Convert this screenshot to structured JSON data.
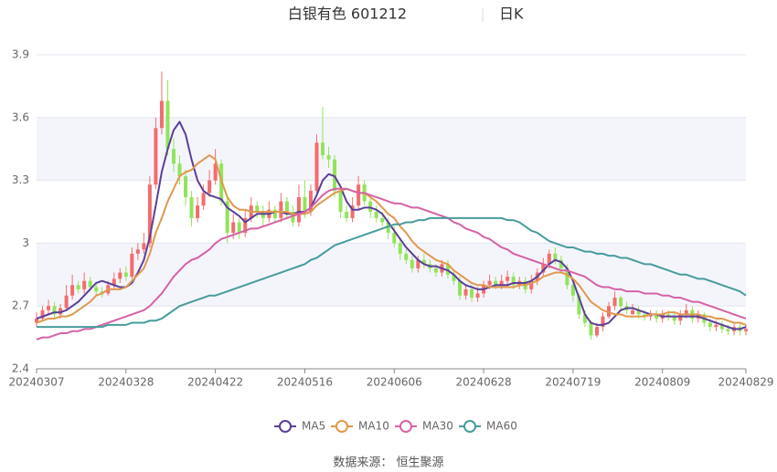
{
  "chart_data": {
    "type": "candlestick",
    "title": "白银有色 601212",
    "period": "日K",
    "source": "数据来源：  恒生聚源",
    "categories": [
      "20240307",
      null,
      null,
      null,
      null,
      null,
      null,
      null,
      null,
      null,
      null,
      null,
      null,
      null,
      null,
      "20240328",
      null,
      null,
      null,
      null,
      null,
      null,
      null,
      null,
      null,
      null,
      null,
      null,
      null,
      null,
      "20240422",
      null,
      null,
      null,
      null,
      null,
      null,
      null,
      null,
      null,
      null,
      null,
      null,
      null,
      null,
      "20240516",
      null,
      null,
      null,
      null,
      null,
      null,
      null,
      null,
      null,
      null,
      null,
      null,
      null,
      null,
      "20240606",
      null,
      null,
      null,
      null,
      null,
      null,
      null,
      null,
      null,
      null,
      null,
      null,
      null,
      null,
      "20240628",
      null,
      null,
      null,
      null,
      null,
      null,
      null,
      null,
      null,
      null,
      null,
      null,
      null,
      null,
      "20240719",
      null,
      null,
      null,
      null,
      null,
      null,
      null,
      null,
      null,
      null,
      null,
      null,
      null,
      null,
      "20240809",
      null,
      null,
      null,
      null,
      null,
      null,
      null,
      null,
      null,
      null,
      null,
      null,
      null,
      "20240829"
    ],
    "candles": {
      "open": [
        2.62,
        2.64,
        2.68,
        2.7,
        2.66,
        2.69,
        2.75,
        2.8,
        2.78,
        2.82,
        2.79,
        2.77,
        2.76,
        2.8,
        2.83,
        2.86,
        2.84,
        2.95,
        2.97,
        3.0,
        3.28,
        3.55,
        3.68,
        3.45,
        3.38,
        3.32,
        3.22,
        3.12,
        3.18,
        3.24,
        3.3,
        3.38,
        3.2,
        3.05,
        3.1,
        3.05,
        3.12,
        3.18,
        3.15,
        3.12,
        3.16,
        3.12,
        3.2,
        3.15,
        3.1,
        3.22,
        3.15,
        3.25,
        3.48,
        3.42,
        3.4,
        3.25,
        3.15,
        3.12,
        3.18,
        3.28,
        3.2,
        3.15,
        3.12,
        3.1,
        3.05,
        3.0,
        2.95,
        2.92,
        2.88,
        2.92,
        2.9,
        2.88,
        2.86,
        2.9,
        2.85,
        2.82,
        2.75,
        2.78,
        2.74,
        2.76,
        2.8,
        2.82,
        2.8,
        2.82,
        2.84,
        2.8,
        2.82,
        2.78,
        2.82,
        2.86,
        2.9,
        2.95,
        2.92,
        2.88,
        2.8,
        2.75,
        2.66,
        2.62,
        2.56,
        2.6,
        2.65,
        2.7,
        2.74,
        2.7,
        2.66,
        2.68,
        2.66,
        2.65,
        2.66,
        2.64,
        2.66,
        2.65,
        2.63,
        2.66,
        2.68,
        2.64,
        2.66,
        2.62,
        2.6,
        2.61,
        2.59,
        2.58,
        2.6,
        2.58
      ],
      "high": [
        2.67,
        2.7,
        2.73,
        2.72,
        2.71,
        2.8,
        2.85,
        2.82,
        2.86,
        2.84,
        2.81,
        2.79,
        2.82,
        2.86,
        2.88,
        2.89,
        2.98,
        3.0,
        3.05,
        3.32,
        3.6,
        3.82,
        3.78,
        3.5,
        3.42,
        3.35,
        3.25,
        3.22,
        3.28,
        3.35,
        3.45,
        3.4,
        3.22,
        3.14,
        3.12,
        3.16,
        3.22,
        3.2,
        3.18,
        3.2,
        3.18,
        3.24,
        3.22,
        3.18,
        3.28,
        3.3,
        3.28,
        3.52,
        3.65,
        3.46,
        3.42,
        3.28,
        3.18,
        3.22,
        3.32,
        3.3,
        3.22,
        3.18,
        3.15,
        3.12,
        3.08,
        3.02,
        2.97,
        2.94,
        2.94,
        2.95,
        2.92,
        2.9,
        2.92,
        2.92,
        2.87,
        2.84,
        2.8,
        2.8,
        2.79,
        2.82,
        2.85,
        2.84,
        2.85,
        2.87,
        2.86,
        2.84,
        2.84,
        2.85,
        2.88,
        2.93,
        2.97,
        2.98,
        2.94,
        2.9,
        2.82,
        2.76,
        2.68,
        2.63,
        2.62,
        2.67,
        2.72,
        2.77,
        2.75,
        2.72,
        2.71,
        2.7,
        2.68,
        2.68,
        2.68,
        2.68,
        2.68,
        2.67,
        2.68,
        2.71,
        2.7,
        2.68,
        2.67,
        2.64,
        2.63,
        2.63,
        2.61,
        2.62,
        2.62,
        2.61
      ],
      "low": [
        2.6,
        2.63,
        2.66,
        2.64,
        2.64,
        2.68,
        2.73,
        2.76,
        2.76,
        2.77,
        2.75,
        2.74,
        2.75,
        2.78,
        2.81,
        2.82,
        2.83,
        2.92,
        2.95,
        2.98,
        3.26,
        3.52,
        3.42,
        3.34,
        3.28,
        3.18,
        3.08,
        3.1,
        3.16,
        3.22,
        3.28,
        3.18,
        3.0,
        3.02,
        3.02,
        3.03,
        3.1,
        3.12,
        3.08,
        3.1,
        3.1,
        3.1,
        3.12,
        3.08,
        3.08,
        3.12,
        3.13,
        3.24,
        3.4,
        3.36,
        3.22,
        3.12,
        3.1,
        3.1,
        3.16,
        3.18,
        3.12,
        3.1,
        3.08,
        3.02,
        2.98,
        2.92,
        2.9,
        2.86,
        2.86,
        2.88,
        2.86,
        2.84,
        2.84,
        2.83,
        2.8,
        2.73,
        2.73,
        2.72,
        2.72,
        2.74,
        2.78,
        2.78,
        2.78,
        2.8,
        2.78,
        2.78,
        2.76,
        2.76,
        2.8,
        2.84,
        2.88,
        2.9,
        2.86,
        2.78,
        2.72,
        2.64,
        2.6,
        2.54,
        2.55,
        2.58,
        2.64,
        2.68,
        2.68,
        2.66,
        2.66,
        2.64,
        2.63,
        2.63,
        2.62,
        2.62,
        2.63,
        2.61,
        2.61,
        2.64,
        2.62,
        2.62,
        2.6,
        2.58,
        2.58,
        2.57,
        2.56,
        2.56,
        2.56,
        2.56
      ],
      "close": [
        2.64,
        2.68,
        2.7,
        2.66,
        2.69,
        2.75,
        2.8,
        2.78,
        2.82,
        2.79,
        2.77,
        2.76,
        2.8,
        2.83,
        2.86,
        2.84,
        2.95,
        2.97,
        3.0,
        3.28,
        3.55,
        3.68,
        3.45,
        3.38,
        3.32,
        3.22,
        3.12,
        3.18,
        3.24,
        3.3,
        3.38,
        3.2,
        3.05,
        3.1,
        3.05,
        3.12,
        3.18,
        3.15,
        3.12,
        3.16,
        3.12,
        3.2,
        3.15,
        3.1,
        3.22,
        3.15,
        3.25,
        3.48,
        3.42,
        3.4,
        3.25,
        3.15,
        3.12,
        3.18,
        3.28,
        3.2,
        3.15,
        3.12,
        3.1,
        3.05,
        3.0,
        2.95,
        2.92,
        2.88,
        2.92,
        2.9,
        2.88,
        2.86,
        2.9,
        2.85,
        2.82,
        2.75,
        2.78,
        2.74,
        2.76,
        2.8,
        2.82,
        2.8,
        2.82,
        2.84,
        2.8,
        2.82,
        2.78,
        2.82,
        2.86,
        2.9,
        2.95,
        2.92,
        2.88,
        2.8,
        2.75,
        2.66,
        2.62,
        2.56,
        2.6,
        2.65,
        2.7,
        2.74,
        2.7,
        2.68,
        2.68,
        2.66,
        2.65,
        2.66,
        2.64,
        2.66,
        2.65,
        2.63,
        2.66,
        2.68,
        2.64,
        2.66,
        2.62,
        2.6,
        2.61,
        2.59,
        2.58,
        2.6,
        2.58,
        2.59
      ]
    },
    "up_color": "#f26d6d",
    "down_color": "#91e45a",
    "series": [
      {
        "name": "MA5",
        "color": "#5b3f99",
        "values": [
          2.64,
          2.65,
          2.66,
          2.67,
          2.67,
          2.68,
          2.7,
          2.72,
          2.75,
          2.78,
          2.81,
          2.82,
          2.81,
          2.8,
          2.79,
          2.79,
          2.81,
          2.86,
          2.92,
          3.03,
          3.18,
          3.34,
          3.45,
          3.54,
          3.58,
          3.52,
          3.4,
          3.3,
          3.25,
          3.23,
          3.22,
          3.21,
          3.17,
          3.15,
          3.13,
          3.1,
          3.12,
          3.14,
          3.14,
          3.14,
          3.15,
          3.15,
          3.14,
          3.14,
          3.15,
          3.15,
          3.17,
          3.23,
          3.3,
          3.33,
          3.32,
          3.27,
          3.2,
          3.16,
          3.16,
          3.17,
          3.17,
          3.16,
          3.14,
          3.1,
          3.06,
          3.02,
          2.98,
          2.95,
          2.92,
          2.9,
          2.89,
          2.89,
          2.88,
          2.87,
          2.85,
          2.82,
          2.8,
          2.79,
          2.78,
          2.78,
          2.79,
          2.8,
          2.8,
          2.8,
          2.81,
          2.81,
          2.81,
          2.82,
          2.84,
          2.87,
          2.9,
          2.92,
          2.91,
          2.88,
          2.82,
          2.74,
          2.66,
          2.62,
          2.61,
          2.61,
          2.62,
          2.65,
          2.68,
          2.69,
          2.69,
          2.68,
          2.67,
          2.66,
          2.66,
          2.65,
          2.65,
          2.65,
          2.65,
          2.65,
          2.65,
          2.65,
          2.64,
          2.63,
          2.62,
          2.61,
          2.6,
          2.59,
          2.59,
          2.6
        ]
      },
      {
        "name": "MA10",
        "color": "#e0994e",
        "values": [
          2.62,
          2.63,
          2.64,
          2.64,
          2.65,
          2.65,
          2.66,
          2.68,
          2.7,
          2.72,
          2.75,
          2.76,
          2.78,
          2.78,
          2.78,
          2.79,
          2.82,
          2.85,
          2.88,
          2.95,
          3.05,
          3.12,
          3.2,
          3.26,
          3.32,
          3.34,
          3.35,
          3.38,
          3.4,
          3.42,
          3.4,
          3.3,
          3.22,
          3.18,
          3.16,
          3.16,
          3.15,
          3.15,
          3.15,
          3.15,
          3.15,
          3.15,
          3.15,
          3.14,
          3.14,
          3.14,
          3.15,
          3.18,
          3.2,
          3.22,
          3.24,
          3.25,
          3.26,
          3.25,
          3.24,
          3.24,
          3.22,
          3.2,
          3.17,
          3.14,
          3.12,
          3.08,
          3.05,
          3.01,
          2.98,
          2.96,
          2.94,
          2.92,
          2.91,
          2.9,
          2.87,
          2.85,
          2.83,
          2.81,
          2.8,
          2.8,
          2.79,
          2.79,
          2.79,
          2.79,
          2.79,
          2.8,
          2.8,
          2.81,
          2.82,
          2.84,
          2.85,
          2.86,
          2.86,
          2.85,
          2.83,
          2.8,
          2.76,
          2.72,
          2.7,
          2.68,
          2.67,
          2.66,
          2.66,
          2.65,
          2.65,
          2.65,
          2.65,
          2.66,
          2.66,
          2.66,
          2.67,
          2.67,
          2.66,
          2.66,
          2.66,
          2.66,
          2.65,
          2.65,
          2.64,
          2.64,
          2.63,
          2.62,
          2.62,
          2.61
        ]
      },
      {
        "name": "MA30",
        "color": "#d562a6",
        "values": [
          2.54,
          2.55,
          2.55,
          2.56,
          2.57,
          2.57,
          2.58,
          2.58,
          2.59,
          2.59,
          2.6,
          2.61,
          2.62,
          2.63,
          2.64,
          2.65,
          2.66,
          2.67,
          2.68,
          2.7,
          2.73,
          2.76,
          2.8,
          2.84,
          2.87,
          2.9,
          2.92,
          2.93,
          2.95,
          2.97,
          3.0,
          3.02,
          3.03,
          3.04,
          3.05,
          3.06,
          3.07,
          3.07,
          3.08,
          3.09,
          3.1,
          3.11,
          3.12,
          3.13,
          3.14,
          3.15,
          3.17,
          3.2,
          3.23,
          3.25,
          3.26,
          3.26,
          3.26,
          3.25,
          3.24,
          3.24,
          3.23,
          3.22,
          3.21,
          3.2,
          3.19,
          3.19,
          3.18,
          3.17,
          3.17,
          3.16,
          3.15,
          3.14,
          3.13,
          3.12,
          3.1,
          3.09,
          3.07,
          3.06,
          3.05,
          3.03,
          3.02,
          3.0,
          2.98,
          2.97,
          2.95,
          2.94,
          2.93,
          2.92,
          2.91,
          2.9,
          2.89,
          2.88,
          2.87,
          2.87,
          2.86,
          2.85,
          2.84,
          2.82,
          2.8,
          2.79,
          2.79,
          2.78,
          2.78,
          2.77,
          2.77,
          2.77,
          2.76,
          2.76,
          2.76,
          2.75,
          2.75,
          2.74,
          2.74,
          2.73,
          2.72,
          2.72,
          2.71,
          2.7,
          2.69,
          2.68,
          2.67,
          2.66,
          2.65,
          2.64
        ]
      },
      {
        "name": "MA60",
        "color": "#479c9c",
        "values": [
          2.6,
          2.6,
          2.6,
          2.6,
          2.6,
          2.6,
          2.6,
          2.6,
          2.6,
          2.6,
          2.6,
          2.6,
          2.61,
          2.61,
          2.61,
          2.61,
          2.62,
          2.62,
          2.62,
          2.63,
          2.63,
          2.64,
          2.66,
          2.68,
          2.7,
          2.71,
          2.72,
          2.73,
          2.74,
          2.75,
          2.75,
          2.76,
          2.77,
          2.78,
          2.79,
          2.8,
          2.81,
          2.82,
          2.83,
          2.84,
          2.85,
          2.86,
          2.87,
          2.88,
          2.89,
          2.9,
          2.92,
          2.93,
          2.95,
          2.97,
          2.99,
          3.0,
          3.01,
          3.02,
          3.03,
          3.04,
          3.05,
          3.06,
          3.07,
          3.08,
          3.09,
          3.09,
          3.1,
          3.1,
          3.11,
          3.11,
          3.12,
          3.12,
          3.12,
          3.12,
          3.12,
          3.12,
          3.12,
          3.12,
          3.12,
          3.12,
          3.12,
          3.12,
          3.12,
          3.11,
          3.11,
          3.1,
          3.08,
          3.06,
          3.05,
          3.03,
          3.01,
          3.0,
          2.99,
          2.98,
          2.98,
          2.97,
          2.96,
          2.96,
          2.95,
          2.95,
          2.94,
          2.94,
          2.93,
          2.93,
          2.92,
          2.91,
          2.9,
          2.9,
          2.89,
          2.88,
          2.87,
          2.86,
          2.85,
          2.85,
          2.84,
          2.83,
          2.83,
          2.82,
          2.81,
          2.8,
          2.79,
          2.78,
          2.77,
          2.75
        ]
      }
    ],
    "ylim": [
      2.4,
      3.9
    ],
    "yticks": [
      2.4,
      2.7,
      3,
      3.3,
      3.6,
      3.9
    ],
    "grid": true,
    "split_area": true,
    "legend": "bottom"
  }
}
